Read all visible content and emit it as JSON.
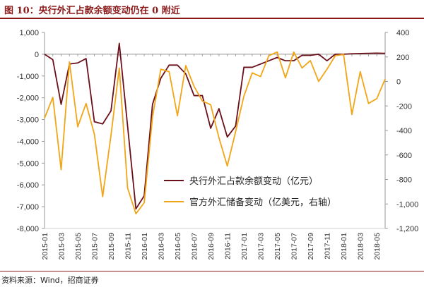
{
  "header": {
    "title": "图 10：央行外汇占款余额变动仍在 0 附近"
  },
  "footer": {
    "source": "资料来源：Wind，招商证券"
  },
  "colors": {
    "brand": "#8b1a1a",
    "series_pboc": "#6b0f1a",
    "series_official": "#f2a516",
    "axis": "#999999"
  },
  "chart_data": {
    "type": "line",
    "x": [
      "2015-01",
      "2015-02",
      "2015-03",
      "2015-04",
      "2015-05",
      "2015-06",
      "2015-07",
      "2015-08",
      "2015-09",
      "2015-10",
      "2015-11",
      "2015-12",
      "2016-01",
      "2016-02",
      "2016-03",
      "2016-04",
      "2016-05",
      "2016-06",
      "2016-07",
      "2016-08",
      "2016-09",
      "2016-10",
      "2016-11",
      "2016-12",
      "2017-01",
      "2017-02",
      "2017-03",
      "2017-04",
      "2017-05",
      "2017-06",
      "2017-07",
      "2017-08",
      "2017-09",
      "2017-10",
      "2017-11",
      "2017-12",
      "2018-01",
      "2018-02",
      "2018-03",
      "2018-04",
      "2018-05",
      "2018-06"
    ],
    "x_tick_labels": [
      "2015-01",
      "2015-03",
      "2015-05",
      "2015-07",
      "2015-09",
      "2015-11",
      "2016-01",
      "2016-03",
      "2016-05",
      "2016-07",
      "2016-09",
      "2016-11",
      "2017-01",
      "2017-03",
      "2017-05",
      "2017-07",
      "2017-09",
      "2017-11",
      "2018-01",
      "2018-03",
      "2018-05"
    ],
    "y_left": {
      "lim": [
        -8000,
        1000
      ],
      "ticks": [
        "1,000",
        "0",
        "-1,000",
        "-2,000",
        "-3,000",
        "-4,000",
        "-5,000",
        "-6,000",
        "-7,000",
        "-8,000"
      ]
    },
    "y_right": {
      "lim": [
        -1200,
        400
      ],
      "ticks": [
        "400",
        "200",
        "0",
        "-200",
        "-400",
        "-600",
        "-800",
        "-1,000",
        "-1,200"
      ]
    },
    "series": [
      {
        "name": "央行外汇占款余额变动（亿元）",
        "axis": "left",
        "values": [
          0,
          -250,
          -2300,
          -450,
          -400,
          -200,
          -3100,
          -3200,
          -2600,
          500,
          -3300,
          -7100,
          -6500,
          -2300,
          -1100,
          -500,
          -500,
          -900,
          -1900,
          -1900,
          -3400,
          -2500,
          -3800,
          -3300,
          -600,
          -600,
          -450,
          -300,
          -150,
          -300,
          -300,
          -50,
          -50,
          0,
          -300,
          0,
          0,
          20,
          30,
          40,
          50,
          40
        ]
      },
      {
        "name": "官方外汇储备变动（亿美元，右轴）",
        "axis": "right",
        "values": [
          -300,
          -130,
          -720,
          160,
          -370,
          -180,
          -430,
          -940,
          -440,
          110,
          -870,
          -1080,
          -990,
          -290,
          100,
          80,
          -280,
          130,
          -40,
          -160,
          -190,
          -460,
          -690,
          -410,
          -120,
          70,
          40,
          210,
          240,
          30,
          240,
          110,
          170,
          0,
          100,
          210,
          220,
          -270,
          80,
          -180,
          -140,
          20
        ]
      }
    ],
    "legend": {
      "placement": "center-right"
    },
    "grid": false
  }
}
